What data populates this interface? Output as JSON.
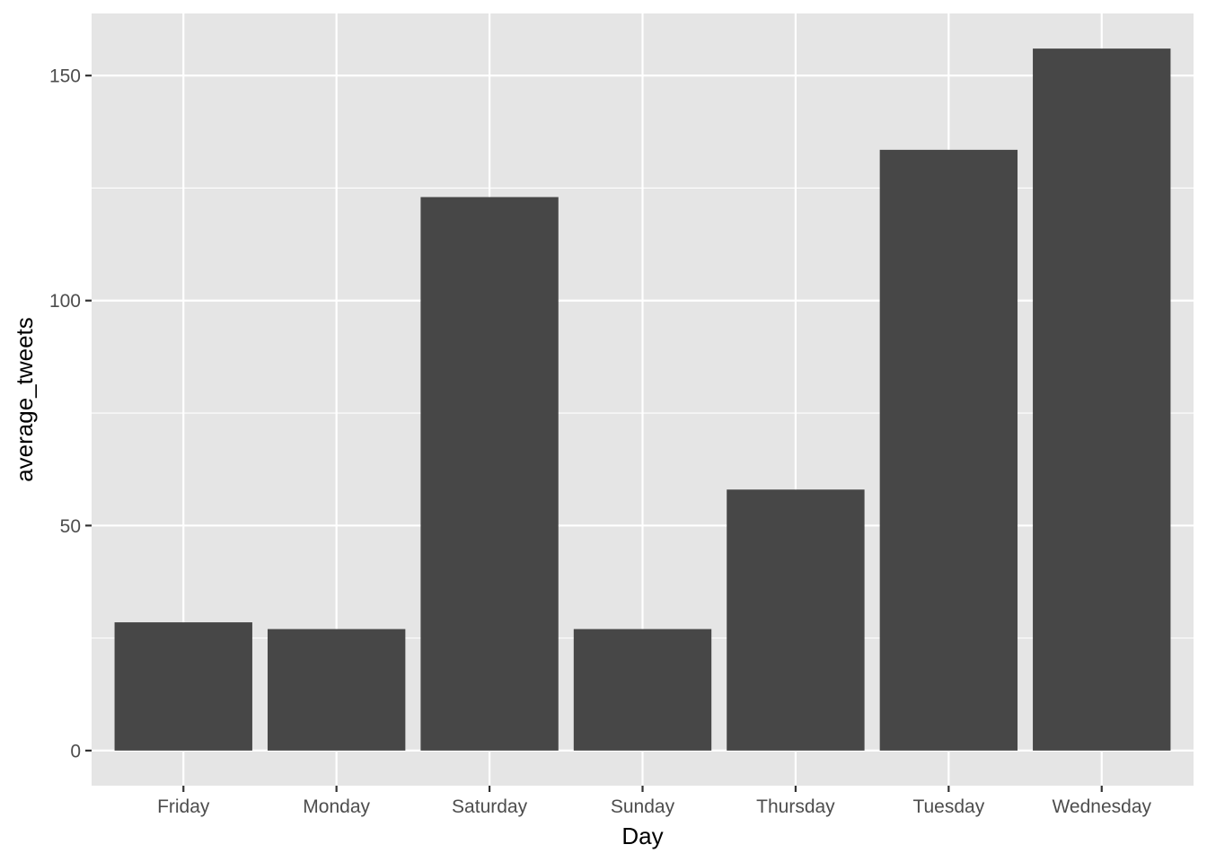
{
  "chart_data": {
    "type": "bar",
    "title": "",
    "xlabel": "Day",
    "ylabel": "average_tweets",
    "categories": [
      "Friday",
      "Monday",
      "Saturday",
      "Sunday",
      "Thursday",
      "Tuesday",
      "Wednesday"
    ],
    "values": [
      28.5,
      27,
      123,
      27,
      58,
      133.5,
      156
    ],
    "ylim": [
      -7.8,
      163.8
    ],
    "yticks": [
      0,
      50,
      100,
      150
    ],
    "grid": true,
    "legend": "none",
    "colors": {
      "bar": "#474747",
      "panel": "#e5e5e5",
      "grid": "#ffffff",
      "axis_text": "#4d4d4d",
      "tick_mark": "#333333"
    }
  }
}
